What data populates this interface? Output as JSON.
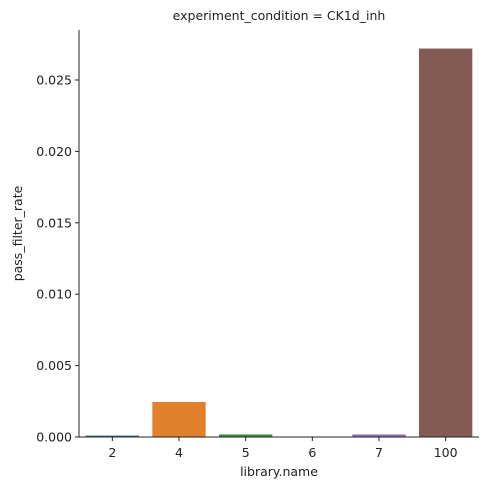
{
  "chart_data": {
    "type": "bar",
    "title": "experiment_condition = CK1d_inh",
    "xlabel": "library.name",
    "ylabel": "pass_filter_rate",
    "categories": [
      "2",
      "4",
      "5",
      "6",
      "7",
      "100"
    ],
    "values": [
      0.0001,
      0.00245,
      0.00018,
      0.0,
      0.00018,
      0.0272
    ],
    "colors": [
      "#1f77b4",
      "#ff7f0e",
      "#2ca02c",
      "#d62728",
      "#9467bd",
      "#8c564b"
    ],
    "bar_colors_rendered": [
      "#3274a1",
      "#e1812c",
      "#3a923a",
      "#c03d3e",
      "#9372b2",
      "#845b53"
    ],
    "ylim": [
      0,
      0.0285
    ],
    "yticks": [
      0.0,
      0.005,
      0.01,
      0.015,
      0.02,
      0.025
    ],
    "ytick_labels": [
      "0.000",
      "0.005",
      "0.010",
      "0.015",
      "0.020",
      "0.025"
    ],
    "grid": false,
    "legend": false
  }
}
